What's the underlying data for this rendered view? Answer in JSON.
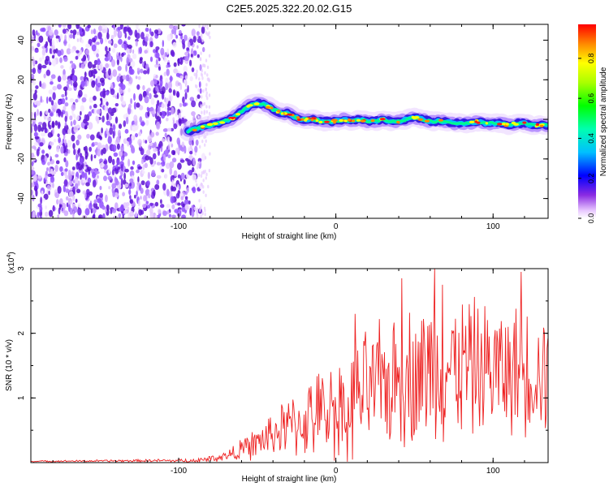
{
  "title": "C2E5.2025.322.20.02.G15",
  "colors": {
    "snr_line": "#ee2222",
    "axis": "#000000"
  },
  "chart_data": [
    {
      "type": "heatmap",
      "name": "spectrogram",
      "xlabel": "Height of straight line (km)",
      "ylabel": "Frequency (Hz)",
      "xlim": [
        -194,
        135
      ],
      "ylim": [
        -50,
        48
      ],
      "xticks": [
        -100,
        0,
        100
      ],
      "xtick_labels": [
        "-100",
        "0",
        "100"
      ],
      "yticks": [
        -40,
        -20,
        0,
        20,
        40
      ],
      "ytick_labels": [
        "-40",
        "-20",
        "0",
        "20",
        "40"
      ],
      "noise_region_x": [
        -194,
        -90
      ],
      "ridge": {
        "x": [
          -94,
          -90,
          -85,
          -80,
          -75,
          -70,
          -65,
          -62,
          -58,
          -55,
          -52,
          -48,
          -44,
          -40,
          -37,
          -34,
          -30,
          -26,
          -22,
          -18,
          -14,
          -10,
          -5,
          0,
          5,
          10,
          15,
          20,
          25,
          30,
          35,
          40,
          45,
          50,
          55,
          60,
          65,
          70,
          75,
          80,
          85,
          90,
          95,
          100,
          105,
          110,
          115,
          120,
          125,
          130,
          135
        ],
        "y": [
          -6,
          -5,
          -4,
          -3,
          -2,
          -1,
          1,
          3,
          5,
          7,
          8,
          8,
          7,
          5,
          4,
          3,
          3,
          1,
          0,
          0,
          0,
          -1,
          -1,
          -1,
          0,
          -1,
          0,
          -1,
          -1,
          0,
          -1,
          -1,
          0,
          1,
          0,
          -1,
          -1,
          -1,
          -2,
          -2,
          -2,
          -1,
          -2,
          -2,
          -2,
          -3,
          -2,
          -2,
          -3,
          -3,
          -3
        ]
      }
    },
    {
      "type": "line",
      "name": "snr",
      "xlabel": "Height of straight line (km)",
      "ylabel": "SNR (10 * v/v)",
      "scale_label": "(x10",
      "scale_exp": "4",
      "scale_close": ")",
      "xlim": [
        -194,
        135
      ],
      "ylim": [
        0,
        3
      ],
      "xticks": [
        -100,
        0,
        100
      ],
      "xtick_labels": [
        "-100",
        "0",
        "100"
      ],
      "yticks": [
        1,
        2,
        3
      ],
      "ytick_labels": [
        "1",
        "2",
        "3"
      ],
      "envelope": {
        "x": [
          -194,
          -120,
          -90,
          -80,
          -70,
          -60,
          -50,
          -40,
          -30,
          -20,
          -10,
          0,
          10,
          20,
          30,
          40,
          50,
          60,
          70,
          80,
          90,
          100,
          110,
          120,
          135
        ],
        "mean": [
          0.02,
          0.03,
          0.03,
          0.06,
          0.1,
          0.2,
          0.3,
          0.45,
          0.55,
          0.65,
          0.75,
          0.85,
          0.95,
          1.1,
          1.2,
          1.3,
          1.35,
          1.45,
          1.45,
          1.5,
          1.45,
          1.45,
          1.4,
          1.45,
          1.4
        ],
        "amp": [
          0.01,
          0.02,
          0.03,
          0.05,
          0.08,
          0.15,
          0.25,
          0.35,
          0.45,
          0.55,
          0.65,
          0.75,
          0.85,
          0.9,
          0.95,
          1.0,
          1.05,
          1.1,
          1.1,
          1.05,
          1.0,
          1.0,
          0.95,
          0.95,
          0.9
        ]
      },
      "peaks": [
        {
          "x": 42,
          "y": 2.85
        },
        {
          "x": 63,
          "y": 3.0
        },
        {
          "x": 68,
          "y": 2.75
        },
        {
          "x": 118,
          "y": 2.95
        },
        {
          "x": 85,
          "y": 2.45
        },
        {
          "x": 12,
          "y": 2.3
        }
      ]
    }
  ],
  "colorbar": {
    "label": "Normalized spectral amplitude",
    "range": [
      0,
      0.97
    ],
    "ticks": [
      0.0,
      0.2,
      0.4,
      0.6,
      0.8
    ],
    "tick_labels": [
      "0.0",
      "0.2",
      "0.4",
      "0.6",
      "0.8"
    ]
  }
}
